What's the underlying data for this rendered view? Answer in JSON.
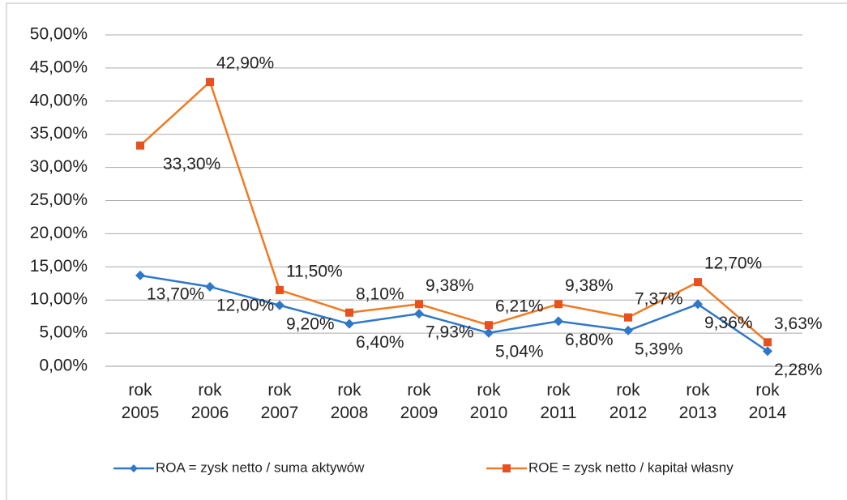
{
  "chart_data": {
    "type": "line",
    "categories": [
      "rok 2005",
      "rok 2006",
      "rok 2007",
      "rok 2008",
      "rok 2009",
      "rok 2010",
      "rok 2011",
      "rok 2012",
      "rok 2013",
      "rok 2014"
    ],
    "series": [
      {
        "name": "ROA = zysk netto / suma aktywów",
        "color": "#2f78c8",
        "label_color": "#1f3a66",
        "marker": "diamond",
        "values": [
          13.7,
          12.0,
          9.2,
          6.4,
          7.93,
          5.04,
          6.8,
          5.39,
          9.36,
          2.28
        ],
        "value_labels": [
          "13,70%",
          "12,00%",
          "9,20%",
          "6,40%",
          "7,93%",
          "5,04%",
          "6,80%",
          "5,39%",
          "9,36%",
          "2,28%"
        ]
      },
      {
        "name": "ROE = zysk netto / kapitał własny",
        "color": "#f07a22",
        "marker_color": "#e8501e",
        "label_color": "#e0302a",
        "marker": "square",
        "values": [
          33.3,
          42.9,
          11.5,
          8.1,
          9.38,
          6.21,
          9.38,
          7.37,
          12.7,
          3.63
        ],
        "value_labels": [
          "33,30%",
          "42,90%",
          "11,50%",
          "8,10%",
          "9,38%",
          "6,21%",
          "9,38%",
          "7,37%",
          "12,70%",
          "3,63%"
        ]
      }
    ],
    "ylim": [
      0,
      50
    ],
    "yticks": [
      {
        "value": 0,
        "label": "0,00%"
      },
      {
        "value": 5,
        "label": "5,00%"
      },
      {
        "value": 10,
        "label": "10,00%"
      },
      {
        "value": 15,
        "label": "15,00%"
      },
      {
        "value": 20,
        "label": "20,00%"
      },
      {
        "value": 25,
        "label": "25,00%"
      },
      {
        "value": 30,
        "label": "30,00%"
      },
      {
        "value": 35,
        "label": "35,00%"
      },
      {
        "value": 40,
        "label": "40,00%"
      },
      {
        "value": 45,
        "label": "45,00%"
      },
      {
        "value": 50,
        "label": "50,00%"
      }
    ],
    "grid": true,
    "legend": "bottom"
  }
}
